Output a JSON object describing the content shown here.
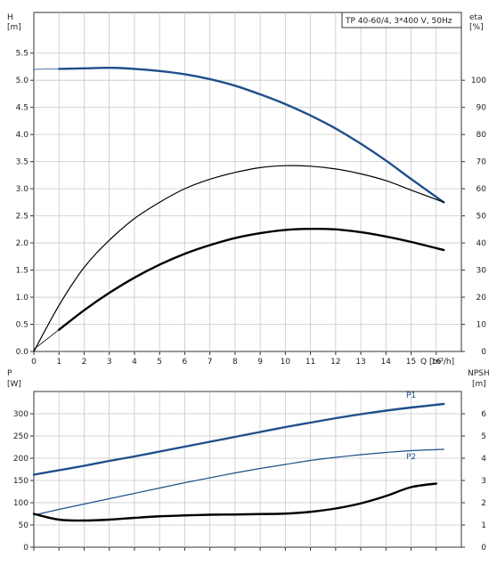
{
  "chart_data": [
    {
      "type": "line",
      "title": "TP 40-60/4, 3*400 V, 50Hz",
      "x_axis": {
        "label": "Q [m³/h]",
        "range": [
          0,
          17
        ],
        "ticks": [
          0,
          1,
          2,
          3,
          4,
          5,
          6,
          7,
          8,
          9,
          10,
          11,
          12,
          13,
          14,
          15,
          16
        ]
      },
      "y_left": {
        "label_top": "H",
        "label_unit": "[m]",
        "range": [
          0,
          6.25
        ],
        "ticks": [
          "0.0",
          "0.5",
          "1.0",
          "1.5",
          "2.0",
          "2.5",
          "3.0",
          "3.5",
          "4.0",
          "4.5",
          "5.0",
          "5.5"
        ]
      },
      "y_right": {
        "label_top": "eta",
        "label_unit": "[%]",
        "range": [
          0,
          125
        ],
        "ticks": [
          "0",
          "10",
          "20",
          "30",
          "40",
          "50",
          "60",
          "70",
          "80",
          "90",
          "100"
        ]
      },
      "grid": true,
      "series": [
        {
          "axis": "left",
          "color": "#1f4f8a",
          "width": 2.4,
          "extension_start": 0,
          "x": [
            1,
            2,
            3,
            4,
            5,
            6,
            7,
            8,
            9,
            10,
            11,
            12,
            13,
            14,
            15,
            16.3
          ],
          "y": [
            5.21,
            5.22,
            5.23,
            5.21,
            5.17,
            5.11,
            5.02,
            4.9,
            4.74,
            4.56,
            4.35,
            4.11,
            3.83,
            3.52,
            3.18,
            2.75
          ]
        },
        {
          "axis": "left",
          "color": "#000000",
          "width": 2.4,
          "extension_start": 0,
          "x": [
            1,
            2,
            3,
            4,
            5,
            6,
            7,
            8,
            9,
            10,
            11,
            12,
            13,
            14,
            15,
            16.3
          ],
          "y": [
            0.4,
            0.76,
            1.08,
            1.36,
            1.6,
            1.8,
            1.96,
            2.09,
            2.18,
            2.24,
            2.26,
            2.25,
            2.2,
            2.12,
            2.02,
            1.87
          ]
        },
        {
          "axis": "right",
          "color": "#000000",
          "width": 1.2,
          "extension_start": 0,
          "x": [
            0,
            1,
            2,
            3,
            4,
            5,
            6,
            7,
            8,
            9,
            10,
            11,
            12,
            13,
            14,
            15,
            16.3
          ],
          "y": [
            0,
            17,
            31,
            41,
            49,
            55,
            60,
            63.5,
            66,
            67.8,
            68.5,
            68.3,
            67.3,
            65.5,
            63,
            59.5,
            55
          ]
        }
      ]
    },
    {
      "type": "line",
      "x_axis": {
        "range": [
          0,
          17
        ],
        "ticks": [
          0,
          1,
          2,
          3,
          4,
          5,
          6,
          7,
          8,
          9,
          10,
          11,
          12,
          13,
          14,
          15,
          16
        ]
      },
      "y_left": {
        "label_top": "P",
        "label_unit": "[W]",
        "range": [
          0,
          350
        ],
        "ticks": [
          "0",
          "50",
          "100",
          "150",
          "200",
          "250",
          "300"
        ]
      },
      "y_right": {
        "label_top": "NPSH",
        "label_unit": "[m]",
        "range": [
          0,
          7
        ],
        "ticks": [
          "0",
          "1",
          "2",
          "3",
          "4",
          "5",
          "6"
        ]
      },
      "grid": true,
      "series": [
        {
          "name": "P1",
          "axis": "left",
          "color": "#1f4f8a",
          "width": 2.4,
          "extension_start": 0,
          "x": [
            0,
            1,
            2,
            3,
            4,
            5,
            6,
            7,
            8,
            9,
            10,
            11,
            12,
            13,
            14,
            15,
            16.3
          ],
          "y": [
            163,
            173,
            183,
            194,
            204,
            215,
            226,
            237,
            248,
            259,
            270,
            280,
            290,
            299,
            307,
            314,
            322
          ]
        },
        {
          "name": "P2",
          "axis": "left",
          "color": "#1f4f8a",
          "width": 1.2,
          "extension_start": 0,
          "x": [
            0,
            1,
            2,
            3,
            4,
            5,
            6,
            7,
            8,
            9,
            10,
            11,
            12,
            13,
            14,
            15,
            16.3
          ],
          "y": [
            72,
            85,
            97,
            109,
            121,
            133,
            145,
            156,
            167,
            177,
            186,
            195,
            202,
            208,
            213,
            217,
            220
          ]
        },
        {
          "axis": "right",
          "color": "#000000",
          "width": 2.4,
          "extension_start": 0,
          "x": [
            0,
            1,
            2,
            3,
            4,
            5,
            6,
            7,
            8,
            9,
            10,
            11,
            12,
            13,
            14,
            15,
            16
          ],
          "y": [
            1.5,
            1.24,
            1.2,
            1.24,
            1.32,
            1.39,
            1.43,
            1.46,
            1.47,
            1.49,
            1.51,
            1.59,
            1.74,
            1.97,
            2.3,
            2.7,
            2.86
          ]
        }
      ]
    }
  ]
}
